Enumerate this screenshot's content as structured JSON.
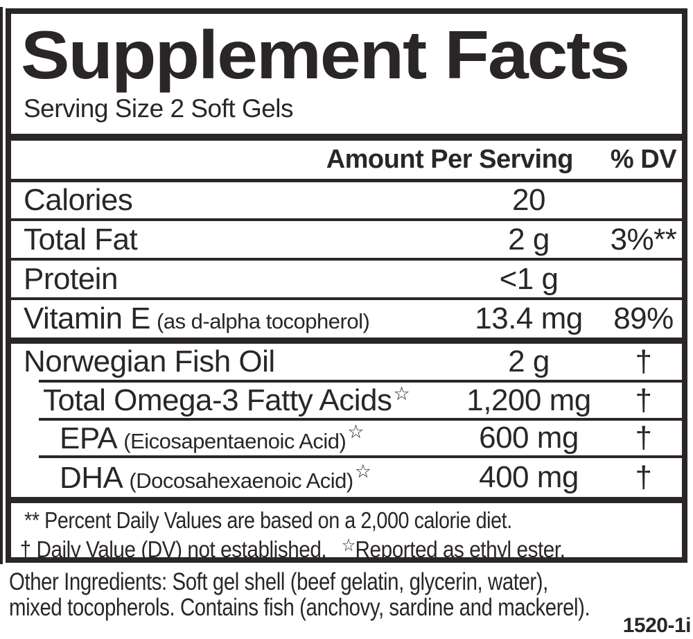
{
  "colors": {
    "ink": "#2a2627",
    "background": "#ffffff"
  },
  "title": "Supplement Facts",
  "serving_size": "Serving Size 2 Soft Gels",
  "header": {
    "amount_label": "Amount Per Serving",
    "dv_label": "% DV"
  },
  "rows": [
    {
      "name": "Calories",
      "amount": "20",
      "dv": ""
    },
    {
      "name": "Total Fat",
      "amount": "2 g",
      "dv": "3%**"
    },
    {
      "name": "Protein",
      "amount": "<1 g",
      "dv": ""
    },
    {
      "name": "Vitamin E",
      "note": "(as d-alpha tocopherol)",
      "amount": "13.4 mg",
      "dv": "89%"
    },
    {
      "name": "Norwegian Fish Oil",
      "amount": "2 g",
      "dv": "†"
    },
    {
      "name": "Total Omega-3 Fatty Acids",
      "star_n": "☆",
      "amount": "1,200 mg",
      "dv": "†"
    },
    {
      "name": "EPA",
      "note": "(Eicosapentaenoic Acid)",
      "star": "☆",
      "amount": "600 mg",
      "dv": "†"
    },
    {
      "name": "DHA",
      "note": "(Docosahexaenoic Acid)",
      "star": "☆",
      "amount": "400 mg",
      "dv": "†"
    }
  ],
  "footnotes": {
    "line1": "** Percent Daily Values are based on a 2,000 calorie diet.",
    "line2_dagger": "† Daily Value (DV) not established.",
    "ester_star": "☆",
    "line2_ester": "Reported as ethyl ester."
  },
  "other_ingredients": {
    "line1": "Other Ingredients: Soft gel shell (beef gelatin, glycerin, water),",
    "line2": "mixed tocopherols. Contains fish (anchovy, sardine and mackerel)."
  },
  "part_number": "1520-1i"
}
